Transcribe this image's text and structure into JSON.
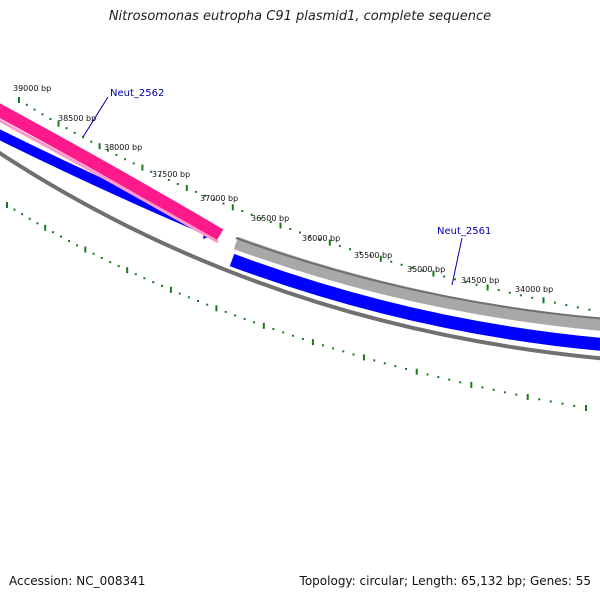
{
  "title": "Nitrosomonas eutropha C91 plasmid1, complete sequence",
  "accession": "Accession: NC_008341",
  "summary": "Topology: circular; Length: 65,132 bp; Genes: 55",
  "colors": {
    "forward_gene": "#ff1a8c",
    "reverse_gene": "#0000ff",
    "grey_gene": "#a8a8a8",
    "backbone": "#707070",
    "tick": "#1a7a1a",
    "gene_label": "#0000aa"
  },
  "scale_labels": [
    {
      "text": "39000 bp",
      "bp": 39000
    },
    {
      "text": "38500 bp",
      "bp": 38500
    },
    {
      "text": "38000 bp",
      "bp": 38000
    },
    {
      "text": "37500 bp",
      "bp": 37500
    },
    {
      "text": "37000 bp",
      "bp": 37000
    },
    {
      "text": "36500 bp",
      "bp": 36500
    },
    {
      "text": "36000 bp",
      "bp": 36000
    },
    {
      "text": "35500 bp",
      "bp": 35500
    },
    {
      "text": "35000 bp",
      "bp": 35000
    },
    {
      "text": "34500 bp",
      "bp": 34500
    },
    {
      "text": "34000 bp",
      "bp": 34000
    }
  ],
  "gene_labels": [
    {
      "name": "Neut_2562",
      "strand": "forward"
    },
    {
      "name": "Neut_2561",
      "strand": "forward"
    }
  ]
}
